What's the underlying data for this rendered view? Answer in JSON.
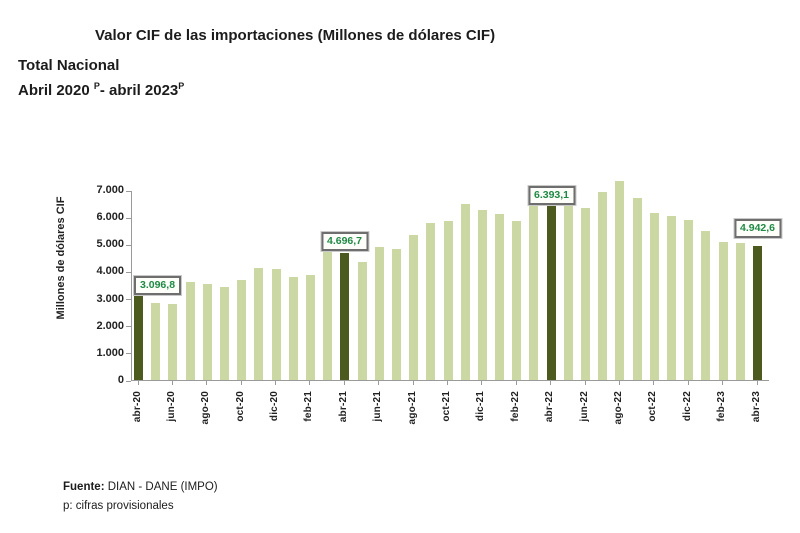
{
  "header": {
    "title": "Valor CIF de las importaciones (Millones de dólares CIF)",
    "subtitle": "Total Nacional",
    "period": {
      "t1": "Abril 2020 ",
      "s1": "P",
      "t2": "- abril 2023",
      "s2": "P"
    }
  },
  "chart_data": {
    "type": "bar",
    "title": "Valor CIF de las importaciones (Millones de dólares CIF)",
    "subtitle": "Total Nacional, Abril 2020 p - abril 2023 p",
    "ylabel": "Millones de dólares CIF",
    "xlabel": "",
    "ylim": [
      0,
      7000
    ],
    "grid": false,
    "legend": "none",
    "yticks": [
      {
        "value": 0,
        "label": "0"
      },
      {
        "value": 1000,
        "label": "1.000"
      },
      {
        "value": 2000,
        "label": "2.000"
      },
      {
        "value": 3000,
        "label": "3.000"
      },
      {
        "value": 4000,
        "label": "4.000"
      },
      {
        "value": 5000,
        "label": "5.000"
      },
      {
        "value": 6000,
        "label": "6.000"
      },
      {
        "value": 7000,
        "label": "7.000"
      }
    ],
    "categories": [
      "abr-20",
      "may-20",
      "jun-20",
      "jul-20",
      "ago-20",
      "sep-20",
      "oct-20",
      "nov-20",
      "dic-20",
      "ene-21",
      "feb-21",
      "mar-21",
      "abr-21",
      "may-21",
      "jun-21",
      "jul-21",
      "ago-21",
      "sep-21",
      "oct-21",
      "nov-21",
      "dic-21",
      "ene-22",
      "feb-22",
      "mar-22",
      "abr-22",
      "may-22",
      "jun-22",
      "jul-22",
      "ago-22",
      "sep-22",
      "oct-22",
      "nov-22",
      "dic-22",
      "ene-23",
      "feb-23",
      "mar-23",
      "abr-23"
    ],
    "shown_x_tick_labels": [
      "abr-20",
      "jun-20",
      "ago-20",
      "oct-20",
      "dic-20",
      "feb-21",
      "abr-21",
      "jun-21",
      "ago-21",
      "oct-21",
      "dic-21",
      "feb-22",
      "abr-22",
      "jun-22",
      "ago-22",
      "oct-22",
      "dic-22",
      "feb-23",
      "abr-23"
    ],
    "values": [
      3096.8,
      2820,
      2800,
      3610,
      3520,
      3410,
      3700,
      4130,
      4080,
      3790,
      3870,
      4740,
      4696.7,
      4350,
      4900,
      4830,
      5360,
      5770,
      5850,
      6500,
      6250,
      6100,
      5840,
      6630,
      6393.1,
      6550,
      6350,
      6940,
      7330,
      6700,
      6170,
      6060,
      5880,
      5490,
      5070,
      5040,
      4942.6
    ],
    "highlights": [
      {
        "index": 0,
        "category": "abr-20",
        "label": "3.096,8"
      },
      {
        "index": 12,
        "category": "abr-21",
        "label": "4.696,7"
      },
      {
        "index": 24,
        "category": "abr-22",
        "label": "6.393,1"
      },
      {
        "index": 36,
        "category": "abr-23",
        "label": "4.942,6"
      }
    ],
    "colors": {
      "bar": "#ccd8a4",
      "highlight_bar": "#4c5a20",
      "value_label_text": "#1e8a45",
      "axis": "#9a9a9a"
    }
  },
  "footer": {
    "source_label": "Fuente:",
    "source_text": " DIAN - DANE (IMPO)",
    "note": "p: cifras provisionales"
  }
}
